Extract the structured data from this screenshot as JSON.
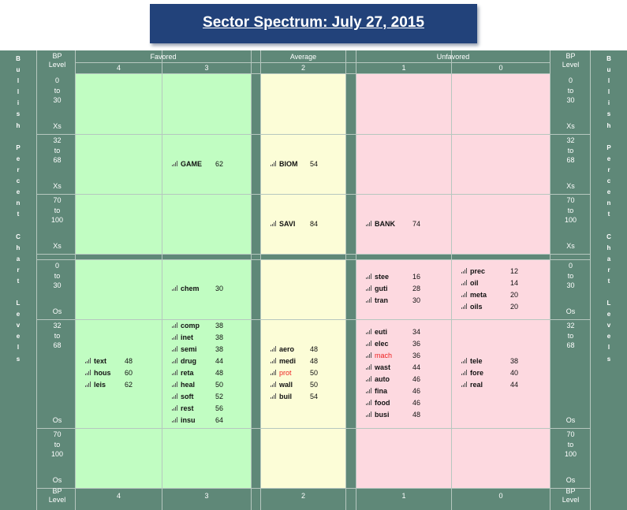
{
  "title": "Sector Spectrum: July 27, 2015",
  "side_label": "Bullish Percent Chart Levels",
  "bp_level_header": [
    "BP",
    "Level"
  ],
  "groups": [
    "Favored",
    "Average",
    "Unfavored"
  ],
  "columns": [
    "4",
    "3",
    "2",
    "1",
    "0"
  ],
  "colors": {
    "favored": "#c1fdc2",
    "average": "#fcfdd7",
    "unfavored": "#fdd9e0",
    "frame": "#5f8878",
    "title_bg": "#22427a",
    "alert": "#ee2222"
  },
  "rows": [
    {
      "l1": "0",
      "l2": "to",
      "l3": "30",
      "suffix": "Xs"
    },
    {
      "l1": "32",
      "l2": "to",
      "l3": "68",
      "suffix": "Xs"
    },
    {
      "l1": "70",
      "l2": "to",
      "l3": "100",
      "suffix": "Xs"
    },
    {
      "l1": "0",
      "l2": "to",
      "l3": "30",
      "suffix": "Os"
    },
    {
      "l1": "32",
      "l2": "to",
      "l3": "68",
      "suffix": "Os"
    },
    {
      "l1": "70",
      "l2": "to",
      "l3": "100",
      "suffix": "Os"
    }
  ],
  "cells": {
    "c3_r1": [
      {
        "name": "GAME",
        "score": "62"
      }
    ],
    "c2_r1": [
      {
        "name": "BIOM",
        "score": "54"
      }
    ],
    "c2_r2": [
      {
        "name": "SAVI",
        "score": "84"
      }
    ],
    "c1_r2": [
      {
        "name": "BANK",
        "score": "74"
      }
    ],
    "c3_r3": [
      {
        "name": "chem",
        "score": "30"
      }
    ],
    "c1_r3": [
      {
        "name": "stee",
        "score": "16"
      },
      {
        "name": "guti",
        "score": "28"
      },
      {
        "name": "tran",
        "score": "30"
      }
    ],
    "c0_r3": [
      {
        "name": "prec",
        "score": "12"
      },
      {
        "name": "oil",
        "score": "14"
      },
      {
        "name": "meta",
        "score": "20"
      },
      {
        "name": "oils",
        "score": "20"
      }
    ],
    "c4_r4": [
      {
        "name": "text",
        "score": "48"
      },
      {
        "name": "hous",
        "score": "60"
      },
      {
        "name": "leis",
        "score": "62"
      }
    ],
    "c3_r4": [
      {
        "name": "comp",
        "score": "38"
      },
      {
        "name": "inet",
        "score": "38"
      },
      {
        "name": "semi",
        "score": "38"
      },
      {
        "name": "drug",
        "score": "44"
      },
      {
        "name": "reta",
        "score": "48"
      },
      {
        "name": "heal",
        "score": "50"
      },
      {
        "name": "soft",
        "score": "52"
      },
      {
        "name": "rest",
        "score": "56"
      },
      {
        "name": "insu",
        "score": "64"
      }
    ],
    "c2_r4": [
      {
        "name": "aero",
        "score": "48"
      },
      {
        "name": "medi",
        "score": "48"
      },
      {
        "name": "prot",
        "score": "50",
        "alert": true
      },
      {
        "name": "wall",
        "score": "50"
      },
      {
        "name": "buil",
        "score": "54"
      }
    ],
    "c1_r4": [
      {
        "name": "euti",
        "score": "34"
      },
      {
        "name": "elec",
        "score": "36"
      },
      {
        "name": "mach",
        "score": "36",
        "alert": true
      },
      {
        "name": "wast",
        "score": "44"
      },
      {
        "name": "auto",
        "score": "46"
      },
      {
        "name": "fina",
        "score": "46"
      },
      {
        "name": "food",
        "score": "46"
      },
      {
        "name": "busi",
        "score": "48"
      }
    ],
    "c0_r4": [
      {
        "name": "tele",
        "score": "38"
      },
      {
        "name": "fore",
        "score": "40"
      },
      {
        "name": "real",
        "score": "44"
      }
    ]
  }
}
